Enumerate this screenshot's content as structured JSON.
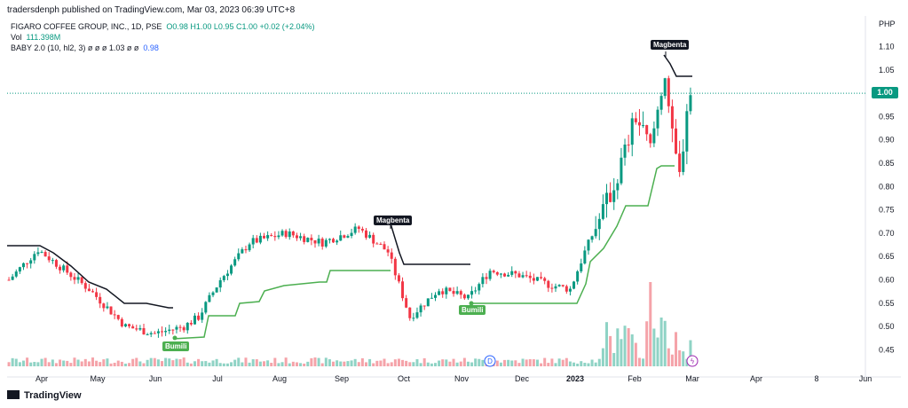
{
  "header": {
    "published": "tradersdenph published on TradingView.com, Mar 03, 2023 06:39 UTC+8"
  },
  "legend": {
    "symbol": "FIGARO COFFEE GROUP, INC., 1D, PSE",
    "ohlc": "O0.98 H1.00 L0.95 C1.00 +0.02 (+2.04%)",
    "vol_label": "Vol",
    "vol_value": "111.398M",
    "indicator_label": "BABY 2.0 (10, hl2, 3) ø ø ø 1.03 ø ø",
    "indicator_value": "0.98"
  },
  "footer": {
    "brand": "TradingView"
  },
  "colors": {
    "up": "#089981",
    "down": "#f23645",
    "vol_up": "#8fd3c5",
    "vol_down": "#f5a3a9",
    "line_black": "#131722",
    "line_green": "#4caf50",
    "price_line": "#089981"
  },
  "chart_data": {
    "type": "candlestick",
    "currency": "PHP",
    "ylim": [
      0.41,
      1.14
    ],
    "yticks": [
      "1.10",
      "1.05",
      "1.00",
      "0.95",
      "0.90",
      "0.85",
      "0.80",
      "0.75",
      "0.70",
      "0.65",
      "0.60",
      "0.55",
      "0.50",
      "0.45"
    ],
    "last_price": "1.00",
    "xticks": [
      "Apr",
      "May",
      "Jun",
      "Jul",
      "Aug",
      "Sep",
      "Oct",
      "Nov",
      "Dec",
      "2023",
      "Feb",
      "Mar",
      "Apr",
      "8",
      "Jun"
    ],
    "annotations": [
      {
        "text": "Magbenta",
        "style": "sell"
      },
      {
        "text": "Bumili",
        "style": "buy"
      },
      {
        "text": "Magbenta",
        "style": "sell"
      },
      {
        "text": "Bumili",
        "style": "buy"
      }
    ],
    "key_prices": [
      {
        "label": "start",
        "value": 0.6
      },
      {
        "label": "peak-apr",
        "value": 0.665
      },
      {
        "label": "low-may",
        "value": 0.485
      },
      {
        "label": "peak-aug",
        "value": 0.7
      },
      {
        "label": "peak-sep",
        "value": 0.71
      },
      {
        "label": "low-oct",
        "value": 0.52
      },
      {
        "label": "flat-dec",
        "value": 0.58
      },
      {
        "label": "peak-feb",
        "value": 1.05
      },
      {
        "label": "low-feb",
        "value": 0.81
      },
      {
        "label": "last",
        "value": 1.0
      }
    ],
    "series": [
      {
        "name": "Black trailing line"
      },
      {
        "name": "Green trailing line"
      }
    ]
  }
}
